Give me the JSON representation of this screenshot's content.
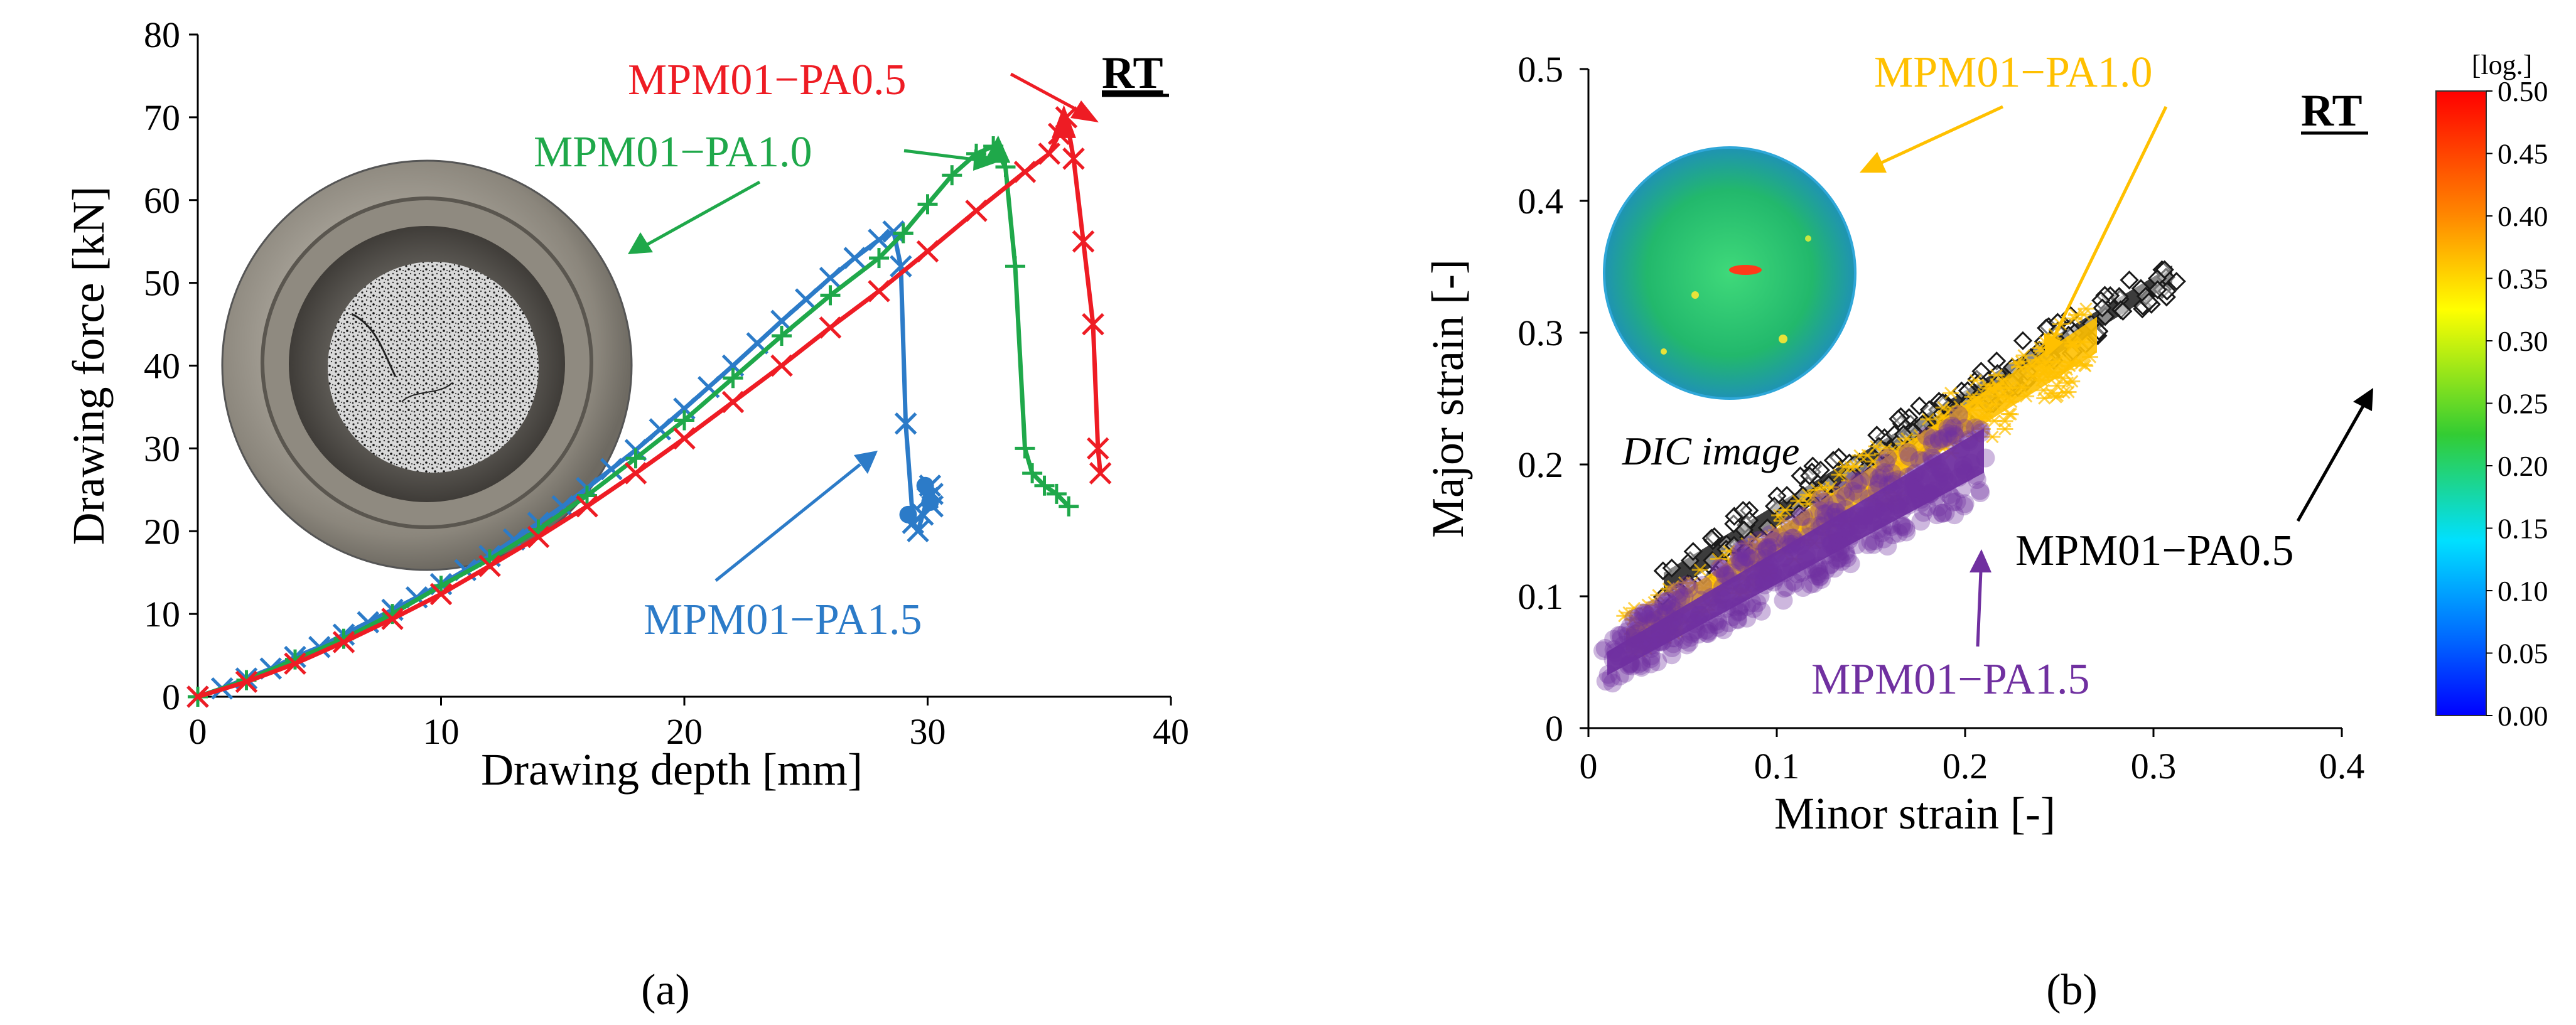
{
  "colors": {
    "red": "#ee1c24",
    "green": "#1fa84a",
    "blue": "#2c7bc8",
    "yellow": "#ffc000",
    "purple": "#7030a0",
    "black": "#1a1a1a"
  },
  "chart_data": [
    {
      "type": "line",
      "panel_label": "(a)",
      "corner_label": "RT",
      "xlabel": "Drawing depth [mm]",
      "ylabel": "Drawing force [kN]",
      "xlim": [
        0,
        40
      ],
      "ylim": [
        0,
        80
      ],
      "xticks": [
        "0",
        "10",
        "20",
        "30",
        "40"
      ],
      "yticks": [
        "0",
        "10",
        "20",
        "30",
        "40",
        "50",
        "60",
        "70",
        "80"
      ],
      "inset_photo": "drawn cup specimen photo",
      "series": [
        {
          "name": "MPM01−PA1.5",
          "color_key": "blue",
          "marker": "x",
          "points": [
            [
              0,
              0
            ],
            [
              1,
              1
            ],
            [
              2,
              2.2
            ],
            [
              3,
              3.4
            ],
            [
              4,
              4.8
            ],
            [
              5,
              6
            ],
            [
              6,
              7.5
            ],
            [
              7,
              9
            ],
            [
              8,
              10.5
            ],
            [
              9,
              12
            ],
            [
              10,
              13.6
            ],
            [
              11,
              15.3
            ],
            [
              12,
              17
            ],
            [
              13,
              19
            ],
            [
              14,
              21
            ],
            [
              15,
              23
            ],
            [
              16,
              25.2
            ],
            [
              17,
              27.5
            ],
            [
              18,
              29.8
            ],
            [
              19,
              32.3
            ],
            [
              20,
              34.8
            ],
            [
              21,
              37.4
            ],
            [
              22,
              40
            ],
            [
              23,
              42.7
            ],
            [
              24,
              45.4
            ],
            [
              25,
              48
            ],
            [
              26,
              50.6
            ],
            [
              27,
              53
            ],
            [
              28,
              55.2
            ],
            [
              28.6,
              56.2
            ],
            [
              28.9,
              52
            ],
            [
              29.1,
              33
            ],
            [
              29.4,
              21
            ],
            [
              29.6,
              20
            ],
            [
              29.8,
              22
            ],
            [
              30,
              24
            ],
            [
              30.1,
              25.5
            ],
            [
              30.2,
              24.5
            ],
            [
              30.2,
              23
            ]
          ]
        },
        {
          "name": "MPM01−PA1.0",
          "color_key": "green",
          "marker": "+",
          "points": [
            [
              0,
              0
            ],
            [
              2,
              2
            ],
            [
              4,
              4.5
            ],
            [
              6,
              7
            ],
            [
              8,
              10
            ],
            [
              10,
              13.4
            ],
            [
              12,
              16.6
            ],
            [
              14,
              20.2
            ],
            [
              16,
              24.3
            ],
            [
              18,
              28.8
            ],
            [
              20,
              33.4
            ],
            [
              22,
              38.5
            ],
            [
              24,
              43.6
            ],
            [
              26,
              48.5
            ],
            [
              28,
              53
            ],
            [
              29,
              56
            ],
            [
              30,
              59.5
            ],
            [
              31,
              63
            ],
            [
              32,
              65.6
            ],
            [
              32.7,
              66.5
            ],
            [
              33.2,
              64
            ],
            [
              33.6,
              52
            ],
            [
              34,
              30
            ],
            [
              34.3,
              27
            ],
            [
              34.8,
              25.5
            ],
            [
              35.3,
              24.5
            ],
            [
              35.8,
              23
            ]
          ]
        },
        {
          "name": "MPM01−PA0.5",
          "color_key": "red",
          "marker": "x",
          "points": [
            [
              0,
              0
            ],
            [
              2,
              1.8
            ],
            [
              4,
              4
            ],
            [
              6,
              6.6
            ],
            [
              8,
              9.4
            ],
            [
              10,
              12.4
            ],
            [
              12,
              15.8
            ],
            [
              14,
              19.3
            ],
            [
              16,
              23
            ],
            [
              18,
              27
            ],
            [
              20,
              31.2
            ],
            [
              22,
              35.6
            ],
            [
              24,
              40
            ],
            [
              26,
              44.6
            ],
            [
              28,
              49
            ],
            [
              30,
              53.8
            ],
            [
              32,
              58.7
            ],
            [
              34,
              63.4
            ],
            [
              35,
              65.6
            ],
            [
              35.4,
              68
            ],
            [
              35.7,
              70
            ],
            [
              36,
              65
            ],
            [
              36.4,
              55
            ],
            [
              36.8,
              45
            ],
            [
              37,
              30
            ],
            [
              37.1,
              27
            ]
          ]
        }
      ],
      "annotations": [
        {
          "text": "MPM01−PA0.5",
          "color_key": "red"
        },
        {
          "text": "MPM01−PA1.0",
          "color_key": "green"
        },
        {
          "text": "MPM01−PA1.5",
          "color_key": "blue"
        }
      ]
    },
    {
      "type": "scatter",
      "panel_label": "(b)",
      "corner_label": "RT",
      "xlabel": "Minor strain [-]",
      "ylabel": "Major strain [-]",
      "xlim": [
        0,
        0.4
      ],
      "ylim": [
        0,
        0.5
      ],
      "xticks": [
        "0",
        "0.1",
        "0.2",
        "0.3",
        "0.4"
      ],
      "yticks": [
        "0",
        "0.1",
        "0.2",
        "0.3",
        "0.4",
        "0.5"
      ],
      "inset_label": "DIC image",
      "series": [
        {
          "name": "MPM01−PA1.5",
          "color_key": "purple",
          "marker": "filled-circle",
          "band": {
            "x_start": 0.01,
            "x_end": 0.21,
            "lower_start": 0.03,
            "lower_end": 0.175,
            "upper_start": 0.07,
            "upper_end": 0.25
          }
        },
        {
          "name": "MPM01−PA1.0",
          "color_key": "yellow",
          "marker": "asterisk",
          "band": {
            "x_start": 0.02,
            "x_end": 0.27,
            "lower_start": 0.05,
            "lower_end": 0.27,
            "upper_start": 0.085,
            "upper_end": 0.33
          }
        },
        {
          "name": "MPM01−PA0.5",
          "color_key": "black",
          "marker": "diamond",
          "band": {
            "x_start": 0.04,
            "x_end": 0.31,
            "lower_start": 0.09,
            "lower_end": 0.33,
            "upper_start": 0.13,
            "upper_end": 0.36
          }
        }
      ],
      "colorbar": {
        "title": "[log.]",
        "ticks": [
          "0.50",
          "0.45",
          "0.40",
          "0.35",
          "0.30",
          "0.25",
          "0.20",
          "0.15",
          "0.10",
          "0.05",
          "0.00"
        ],
        "range": [
          0,
          0.5
        ]
      },
      "annotations": [
        {
          "text": "MPM01−PA1.0",
          "color_key": "yellow"
        },
        {
          "text": "MPM01−PA0.5",
          "color_key": "black"
        },
        {
          "text": "MPM01−PA1.5",
          "color_key": "purple"
        }
      ]
    }
  ]
}
